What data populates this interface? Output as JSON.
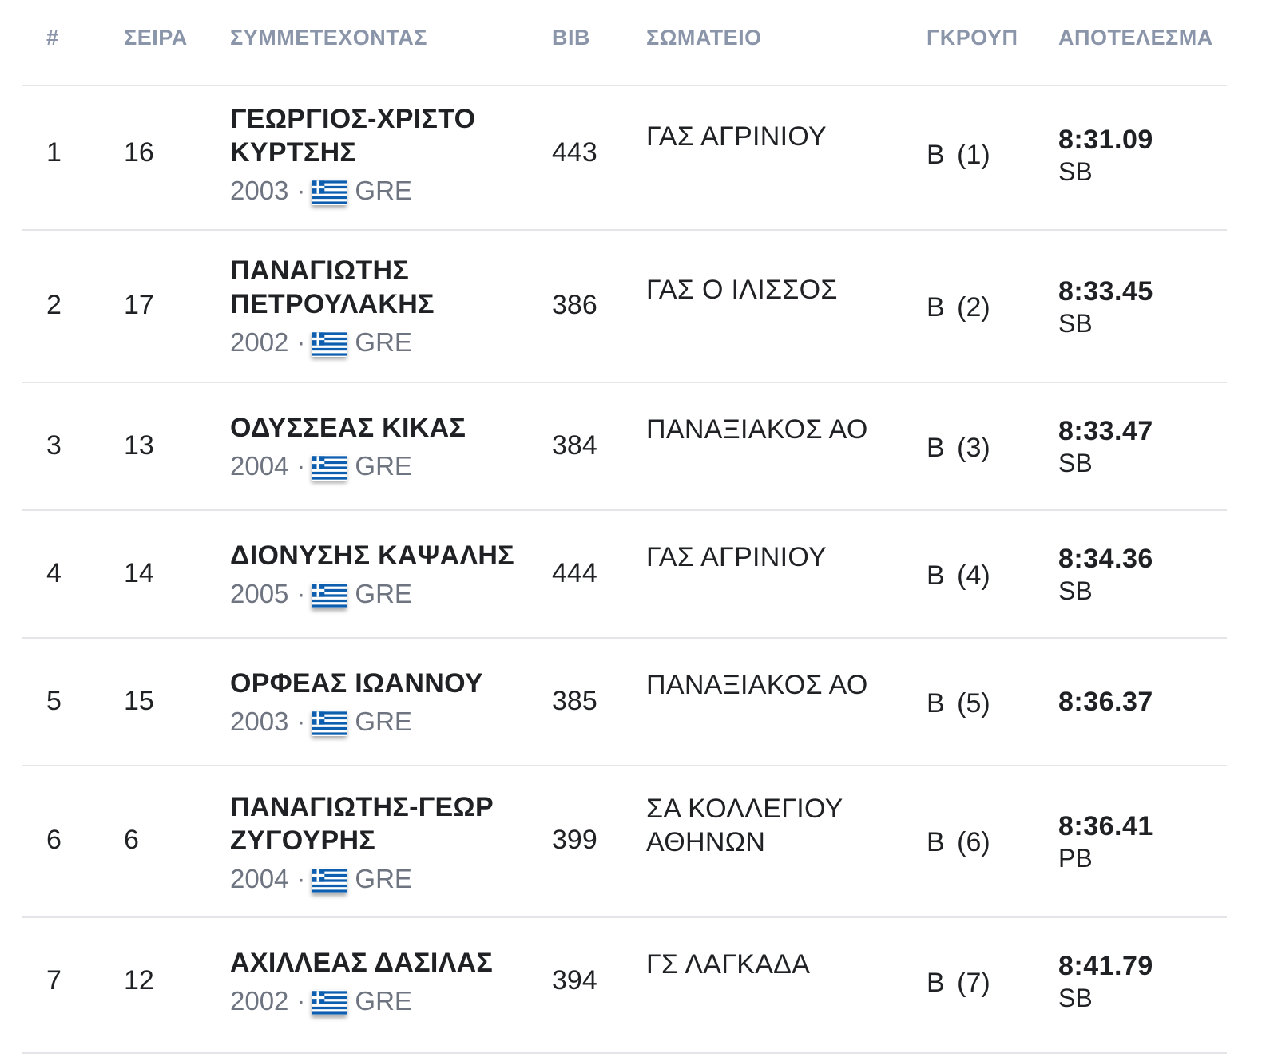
{
  "colors": {
    "header_text": "#8a95a9",
    "body_text": "#1f2124",
    "meta_text": "#6e7480",
    "divider": "#e3e5e8",
    "flag_blue": "#0d5eaf",
    "flag_white": "#ffffff"
  },
  "table": {
    "headers": {
      "rank": "#",
      "lane": "ΣΕΙΡΑ",
      "athlete": "ΣΥΜΜΕΤΕΧΟΝΤΑΣ",
      "bib": "BIB",
      "club": "ΣΩΜΑΤΕΙΟ",
      "group": "ΓΚΡΟΥΠ",
      "result": "ΑΠΟΤΕΛΕΣΜΑ"
    },
    "rows": [
      {
        "rank": "1",
        "lane": "16",
        "name": "ΓΕΩΡΓΙΟΣ-ΧΡΙΣΤΟ ΚΥΡΤΣΗΣ",
        "year": "2003",
        "country": "GRE",
        "flag_icon": "greece-flag-icon",
        "bib": "443",
        "club": "ΓΑΣ ΑΓΡΙΝΙΟΥ",
        "group": "Β (1)",
        "time": "8:31.09",
        "tag": "SB"
      },
      {
        "rank": "2",
        "lane": "17",
        "name": "ΠΑΝΑΓΙΩΤΗΣ ΠΕΤΡΟΥΛΑΚΗΣ",
        "year": "2002",
        "country": "GRE",
        "flag_icon": "greece-flag-icon",
        "bib": "386",
        "club": "ΓΑΣ Ο ΙΛΙΣΣΟΣ",
        "group": "Β (2)",
        "time": "8:33.45",
        "tag": "SB"
      },
      {
        "rank": "3",
        "lane": "13",
        "name": "ΟΔΥΣΣΕΑΣ ΚΙΚΑΣ",
        "year": "2004",
        "country": "GRE",
        "flag_icon": "greece-flag-icon",
        "bib": "384",
        "club": "ΠΑΝΑΞΙΑΚΟΣ ΑΟ",
        "group": "Β (3)",
        "time": "8:33.47",
        "tag": "SB"
      },
      {
        "rank": "4",
        "lane": "14",
        "name": "ΔΙΟΝΥΣΗΣ ΚΑΨΑΛΗΣ",
        "year": "2005",
        "country": "GRE",
        "flag_icon": "greece-flag-icon",
        "bib": "444",
        "club": "ΓΑΣ ΑΓΡΙΝΙΟΥ",
        "group": "Β (4)",
        "time": "8:34.36",
        "tag": "SB"
      },
      {
        "rank": "5",
        "lane": "15",
        "name": "ΟΡΦΕΑΣ ΙΩΑΝΝΟΥ",
        "year": "2003",
        "country": "GRE",
        "flag_icon": "greece-flag-icon",
        "bib": "385",
        "club": "ΠΑΝΑΞΙΑΚΟΣ ΑΟ",
        "group": "Β (5)",
        "time": "8:36.37",
        "tag": ""
      },
      {
        "rank": "6",
        "lane": "6",
        "name": "ΠΑΝΑΓΙΩΤΗΣ-ΓΕΩΡ ΖΥΓΟΥΡΗΣ",
        "year": "2004",
        "country": "GRE",
        "flag_icon": "greece-flag-icon",
        "bib": "399",
        "club": "ΣΑ ΚΟΛΛΕΓΙΟΥ ΑΘΗΝΩΝ",
        "group": "Β (6)",
        "time": "8:36.41",
        "tag": "PB"
      },
      {
        "rank": "7",
        "lane": "12",
        "name": "ΑΧΙΛΛΕΑΣ ΔΑΣΙΛΑΣ",
        "year": "2002",
        "country": "GRE",
        "flag_icon": "greece-flag-icon",
        "bib": "394",
        "club": "ΓΣ ΛΑΓΚΑΔΑ",
        "group": "Β (7)",
        "time": "8:41.79",
        "tag": "SB"
      }
    ]
  }
}
